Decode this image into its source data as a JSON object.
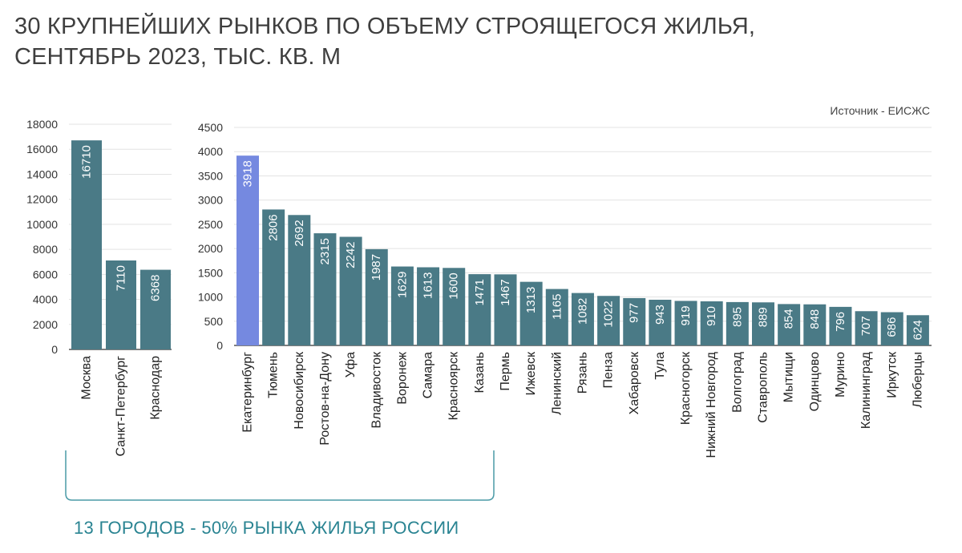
{
  "title_lines": [
    "30 КРУПНЕЙШИХ РЫНКОВ ПО ОБЪЕМУ СТРОЯЩЕГОСЯ ЖИЛЬЯ,",
    "СЕНТЯБРЬ 2023, ТЫС. КВ. М"
  ],
  "source": "Источник - ЕИСЖС",
  "note": "13 ГОРОДОВ - 50% РЫНКА ЖИЛЬЯ РОССИИ",
  "colors": {
    "bar": "#4a7a86",
    "highlight": "#7589e0",
    "grid": "#e3e3e3",
    "axis": "#333333",
    "bracket": "#4a9aa6"
  },
  "chart_data": [
    {
      "type": "bar",
      "title": "",
      "xlabel": "",
      "ylabel": "",
      "ylim": [
        0,
        18000
      ],
      "yticks": [
        0,
        2000,
        4000,
        6000,
        8000,
        10000,
        12000,
        14000,
        16000,
        18000
      ],
      "categories": [
        "Москва",
        "Санкт-Петербург",
        "Краснодар"
      ],
      "values": [
        16710,
        7110,
        6368
      ],
      "highlight_index": -1
    },
    {
      "type": "bar",
      "title": "",
      "xlabel": "",
      "ylabel": "",
      "ylim": [
        0,
        4500
      ],
      "yticks": [
        0,
        500,
        1000,
        1500,
        2000,
        2500,
        3000,
        3500,
        4000,
        4500
      ],
      "categories": [
        "Екатеринбург",
        "Тюмень",
        "Новосибирск",
        "Ростов-на-Дону",
        "Уфа",
        "Владивосток",
        "Воронеж",
        "Самара",
        "Красноярск",
        "Казань",
        "Пермь",
        "Ижевск",
        "Ленинский",
        "Рязань",
        "Пенза",
        "Хабаровск",
        "Тула",
        "Красногорск",
        "Нижний Новгород",
        "Волгоград",
        "Ставрополь",
        "Мытищи",
        "Одинцово",
        "Мурино",
        "Калининград",
        "Иркутск",
        "Люберцы"
      ],
      "values": [
        3918,
        2806,
        2692,
        2315,
        2242,
        1987,
        1629,
        1613,
        1600,
        1471,
        1467,
        1313,
        1165,
        1082,
        1022,
        977,
        943,
        919,
        910,
        895,
        889,
        854,
        848,
        796,
        707,
        686,
        624
      ],
      "highlight_index": 0
    }
  ]
}
